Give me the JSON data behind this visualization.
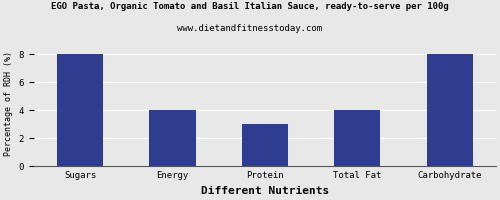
{
  "title": "EGO Pasta, Organic Tomato and Basil Italian Sauce, ready-to-serve per 100g",
  "subtitle": "www.dietandfitnesstoday.com",
  "categories": [
    "Sugars",
    "Energy",
    "Protein",
    "Total Fat",
    "Carbohydrate"
  ],
  "values": [
    8.0,
    4.0,
    3.0,
    4.0,
    8.0
  ],
  "bar_color": "#2e3d8f",
  "xlabel": "Different Nutrients",
  "ylabel": "Percentage of RDH (%)",
  "ylim": [
    0,
    9
  ],
  "yticks": [
    0,
    2,
    4,
    6,
    8
  ],
  "background_color": "#e8e8e8",
  "title_fontsize": 6.5,
  "subtitle_fontsize": 6.5,
  "xlabel_fontsize": 8,
  "ylabel_fontsize": 6,
  "tick_fontsize": 6.5,
  "bar_width": 0.5
}
